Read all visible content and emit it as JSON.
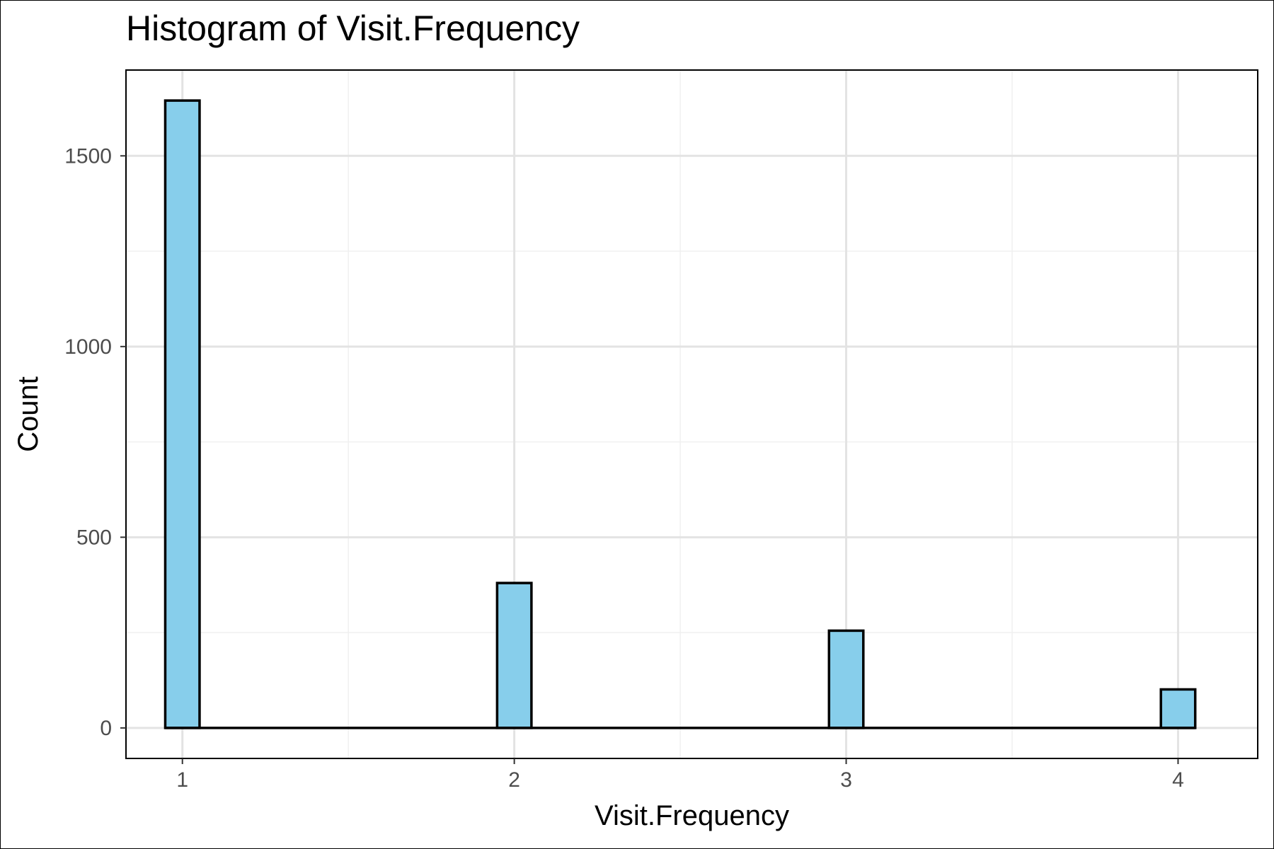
{
  "chart_data": {
    "type": "bar",
    "title": "Histogram of Visit.Frequency",
    "xlabel": "Visit.Frequency",
    "ylabel": "Count",
    "x_ticks": [
      "1",
      "2",
      "3",
      "4"
    ],
    "y_ticks": [
      "0",
      "500",
      "1000",
      "1500"
    ],
    "xlim": [
      0.83,
      4.24
    ],
    "ylim": [
      -80,
      1725
    ],
    "grid": true,
    "bin_width": 0.1034,
    "bins": [
      {
        "x": 1.0,
        "count": 1645
      },
      {
        "x": 2.0,
        "count": 380
      },
      {
        "x": 3.0,
        "count": 255
      },
      {
        "x": 4.0,
        "count": 101
      }
    ],
    "bar_fill": "#87CEEB",
    "bar_stroke": "#000000"
  }
}
